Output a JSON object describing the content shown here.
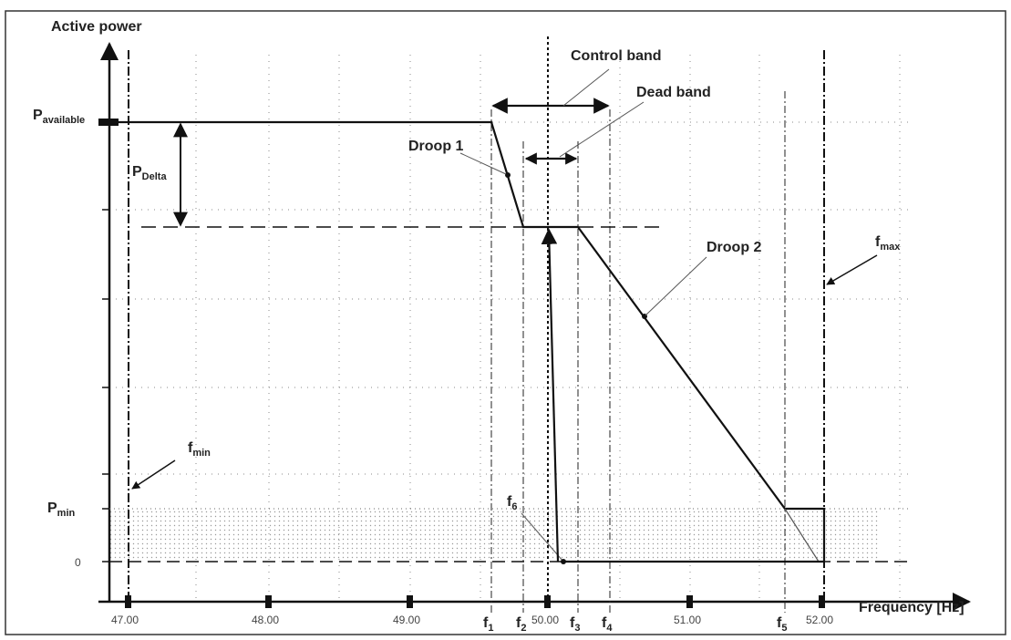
{
  "diagram": {
    "y_axis_label": "Active power",
    "x_axis_label": "Frequency [Hz]",
    "x_ticks": [
      "47.00",
      "48.00",
      "49.00",
      "50.00",
      "51.00",
      "52.00"
    ],
    "y_labels": {
      "p_available": {
        "main": "P",
        "sub": "available"
      },
      "p_min": {
        "main": "P",
        "sub": "min"
      },
      "zero": "0"
    },
    "p_delta": {
      "main": "P",
      "sub": "Delta"
    },
    "annotations": {
      "control_band": "Control band",
      "dead_band": "Dead band",
      "droop1": "Droop 1",
      "droop2": "Droop 2"
    },
    "freq_markers": {
      "f1": {
        "main": "f",
        "sub": "1"
      },
      "f2": {
        "main": "f",
        "sub": "2"
      },
      "f3": {
        "main": "f",
        "sub": "3"
      },
      "f4": {
        "main": "f",
        "sub": "4"
      },
      "f5": {
        "main": "f",
        "sub": "5"
      },
      "f6": {
        "main": "f",
        "sub": "6"
      },
      "fmin": {
        "main": "f",
        "sub": "min"
      },
      "fmax": {
        "main": "f",
        "sub": "max"
      }
    }
  }
}
